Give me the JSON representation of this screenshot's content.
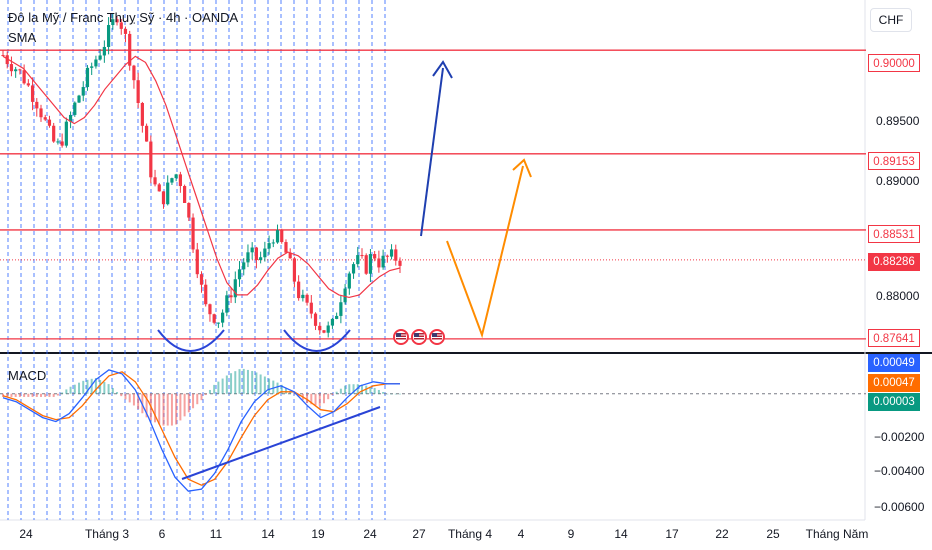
{
  "header": {
    "title": "Đô la Mỹ / Franc Thuỵ Sỹ · 4h · OANDA",
    "indicator_top": "SMA",
    "indicator_bottom": "MACD",
    "currency": "CHF"
  },
  "price_tags": {
    "t90000": "0.90000",
    "t89153": "0.89153",
    "t88531": "0.88531",
    "t88286": "0.88286",
    "t87641": "0.87641",
    "macd1": "0.00049",
    "macd2": "0.00047",
    "macd3": "0.00003"
  },
  "price_axis": [
    "0.89500",
    "0.89000",
    "0.88000"
  ],
  "macd_axis": [
    "−0.00200",
    "−0.00400",
    "−0.00600"
  ],
  "time_axis": [
    "24",
    "Tháng 3",
    "6",
    "11",
    "14",
    "19",
    "24",
    "27",
    "Tháng 4",
    "4",
    "9",
    "14",
    "17",
    "22",
    "25",
    "Tháng Năm"
  ],
  "events": [
    "us-event-flag",
    "us-event-flag",
    "us-event-flag"
  ],
  "colors": {
    "up": "#089981",
    "down": "#f23645",
    "sma": "#f23645",
    "macd_line": "#2962ff",
    "signal_line": "#ff6d00",
    "hline": "#f23645",
    "arrow_blue": "#1f3fb0",
    "arrow_orange": "#ff8c00",
    "grid_v": "#2962ff"
  },
  "chart_data": [
    {
      "type": "candlestick",
      "title": "Đô la Mỹ / Franc Thuỵ Sỹ · 4h · OANDA",
      "x_tick_labels": [
        "24",
        "Tháng 3",
        "6",
        "11",
        "14",
        "19",
        "24",
        "27",
        "Tháng 4",
        "4",
        "9",
        "14",
        "17",
        "22",
        "25",
        "Tháng Năm"
      ],
      "ylim": [
        0.8755,
        0.9041
      ],
      "y_ticks": [
        0.895,
        0.89,
        0.88
      ],
      "horizontal_levels": [
        0.9,
        0.89153,
        0.88531,
        0.87641
      ],
      "last_price": 0.88286,
      "indicators": [
        "SMA"
      ],
      "close_path": [
        0.8996,
        0.899,
        0.8985,
        0.8978,
        0.8968,
        0.8958,
        0.8945,
        0.893,
        0.892,
        0.893,
        0.8945,
        0.896,
        0.8972,
        0.8985,
        0.8995,
        0.9005,
        0.9018,
        0.903,
        0.9015,
        0.899,
        0.896,
        0.893,
        0.89,
        0.888,
        0.888,
        0.8895,
        0.89,
        0.888,
        0.885,
        0.882,
        0.879,
        0.8785,
        0.878,
        0.879,
        0.8805,
        0.882,
        0.883,
        0.8832,
        0.8828,
        0.8835,
        0.885,
        0.8845,
        0.8835,
        0.8818,
        0.88,
        0.879,
        0.8785,
        0.8775,
        0.877,
        0.8775,
        0.8795,
        0.8815,
        0.8825,
        0.8828,
        0.8823,
        0.8835,
        0.8826,
        0.883,
        0.8831,
        0.8829
      ],
      "sma_path": [
        0.8995,
        0.899,
        0.8985,
        0.8975,
        0.8965,
        0.8955,
        0.8945,
        0.894,
        0.8945,
        0.8955,
        0.8968,
        0.8978,
        0.8988,
        0.8995,
        0.899,
        0.8975,
        0.8955,
        0.893,
        0.8905,
        0.888,
        0.8855,
        0.883,
        0.881,
        0.88,
        0.88,
        0.8808,
        0.882,
        0.883,
        0.8835,
        0.8832,
        0.8825,
        0.8815,
        0.8805,
        0.88,
        0.8798,
        0.88,
        0.8808,
        0.8815,
        0.882,
        0.8822
      ]
    },
    {
      "type": "line",
      "title": "MACD",
      "ylim": [
        -0.0062,
        0.0019
      ],
      "y_ticks": [
        -0.002,
        -0.004,
        -0.006
      ],
      "macd_path": [
        -0.0002,
        -0.0004,
        -0.0008,
        -0.0012,
        -0.0014,
        -0.001,
        -0.0002,
        0.0007,
        0.0012,
        0.001,
        0.0002,
        -0.0012,
        -0.0028,
        -0.0042,
        -0.0049,
        -0.0048,
        -0.004,
        -0.0028,
        -0.0014,
        -0.0004,
        0.0002,
        0.0004,
        0.0001,
        -0.0006,
        -0.0012,
        -0.0009,
        -0.0002,
        0.0004,
        0.0006,
        0.0005,
        0.0005
      ],
      "signal_path": [
        -0.0001,
        -0.0003,
        -0.0007,
        -0.0011,
        -0.0013,
        -0.0012,
        -0.0006,
        0.0002,
        0.0009,
        0.0011,
        0.0006,
        -0.0004,
        -0.0018,
        -0.0032,
        -0.0043,
        -0.0046,
        -0.0043,
        -0.0034,
        -0.0022,
        -0.0011,
        -0.0003,
        0.0001,
        0.0001,
        -0.0003,
        -0.0008,
        -0.0009,
        -0.0005,
        0.0001,
        0.0004,
        0.0005,
        0.0005
      ],
      "last_values": {
        "macd": 0.00049,
        "signal": 0.00047,
        "histogram": 3e-05
      }
    }
  ]
}
